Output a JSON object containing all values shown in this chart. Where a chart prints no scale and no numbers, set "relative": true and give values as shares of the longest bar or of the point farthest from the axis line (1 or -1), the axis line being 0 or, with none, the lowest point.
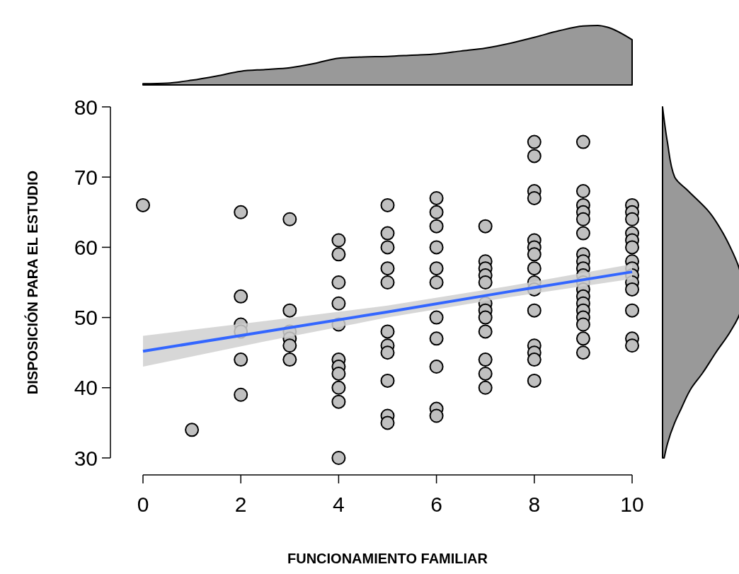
{
  "chart_data": [
    {
      "type": "scatter",
      "xlabel": "FUNCIONAMIENTO FAMILIAR",
      "ylabel": "DISPOSICIÓN PARA EL ESTUDIO",
      "xlim": [
        0,
        10
      ],
      "xticks": [
        0,
        2,
        4,
        6,
        8,
        10
      ],
      "ylim": [
        30,
        80
      ],
      "yticks": [
        30,
        40,
        50,
        60,
        70,
        80
      ],
      "grid": false,
      "marker": "circle",
      "series": [
        {
          "color": "#c0c0c0",
          "x": [
            0,
            1,
            2,
            2,
            2,
            2,
            2,
            2,
            3,
            3,
            3,
            3,
            3,
            3,
            4,
            4,
            4,
            4,
            4,
            4,
            4,
            4,
            4,
            4,
            4,
            5,
            5,
            5,
            5,
            5,
            5,
            5,
            5,
            5,
            5,
            5,
            6,
            6,
            6,
            6,
            6,
            6,
            6,
            6,
            6,
            6,
            6,
            7,
            7,
            7,
            7,
            7,
            7,
            7,
            7,
            7,
            7,
            7,
            7,
            8,
            8,
            8,
            8,
            8,
            8,
            8,
            8,
            8,
            8,
            8,
            8,
            8,
            8,
            8,
            9,
            9,
            9,
            9,
            9,
            9,
            9,
            9,
            9,
            9,
            9,
            9,
            9,
            9,
            9,
            9,
            9,
            9,
            9,
            10,
            10,
            10,
            10,
            10,
            10,
            10,
            10,
            10,
            10,
            10,
            10,
            10,
            10
          ],
          "values": [
            66,
            34,
            65,
            53,
            49,
            48,
            44,
            39,
            64,
            51,
            48,
            47,
            46,
            44,
            61,
            59,
            55,
            52,
            49,
            44,
            43,
            42,
            40,
            38,
            30,
            66,
            62,
            60,
            57,
            55,
            48,
            46,
            45,
            41,
            36,
            35,
            67,
            65,
            63,
            60,
            57,
            55,
            50,
            47,
            43,
            37,
            36,
            63,
            58,
            57,
            56,
            55,
            52,
            51,
            50,
            48,
            44,
            42,
            40,
            75,
            73,
            68,
            67,
            61,
            60,
            59,
            57,
            55,
            54,
            51,
            46,
            45,
            44,
            41,
            75,
            68,
            66,
            65,
            64,
            62,
            59,
            58,
            57,
            56,
            55,
            54,
            53,
            52,
            51,
            50,
            49,
            47,
            45,
            66,
            65,
            64,
            62,
            61,
            60,
            58,
            57,
            56,
            55,
            54,
            51,
            47,
            46
          ]
        },
        {
          "type": "line",
          "color": "#3366ff",
          "line_style": "solid",
          "marker": "none",
          "x": [
            0,
            2.5,
            5,
            7.5,
            10
          ],
          "values": [
            45.2,
            48.0,
            50.8,
            53.7,
            56.5
          ],
          "lower": [
            43.0,
            46.6,
            50.0,
            52.9,
            55.5
          ],
          "upper": [
            47.4,
            49.5,
            51.7,
            54.5,
            57.6
          ]
        }
      ]
    },
    {
      "type": "area",
      "relative": true,
      "xlim": [
        0,
        10
      ],
      "color": "#999999",
      "x": [
        0,
        0.5,
        1,
        1.5,
        2,
        2.5,
        3,
        3.5,
        4,
        4.5,
        5,
        5.5,
        6,
        6.5,
        7,
        7.5,
        8,
        8.5,
        9,
        9.3,
        9.5,
        10
      ],
      "values": [
        0.02,
        0.03,
        0.08,
        0.15,
        0.23,
        0.26,
        0.29,
        0.36,
        0.45,
        0.47,
        0.48,
        0.5,
        0.52,
        0.57,
        0.62,
        0.7,
        0.8,
        0.91,
        0.99,
        1,
        0.97,
        0.76
      ]
    },
    {
      "type": "area",
      "relative": true,
      "orientation": "horizontal",
      "ylim": [
        30,
        80
      ],
      "color": "#999999",
      "x": [
        30,
        32,
        35,
        37,
        40,
        42,
        45,
        48,
        51,
        54,
        57,
        60,
        62,
        65,
        68,
        70,
        75,
        80
      ],
      "values": [
        0.02,
        0.06,
        0.15,
        0.23,
        0.36,
        0.49,
        0.66,
        0.84,
        0.97,
        1,
        0.95,
        0.84,
        0.75,
        0.58,
        0.32,
        0.15,
        0.06,
        0
      ]
    }
  ]
}
